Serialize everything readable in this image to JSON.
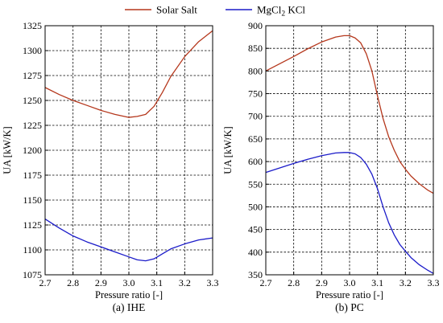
{
  "legend": [
    {
      "name": "Solar Salt",
      "color": "#b5371c"
    },
    {
      "name": "MgCl",
      "sub": "2",
      "name_tail": " KCl",
      "color": "#1b1bc9"
    }
  ],
  "chart_data": [
    {
      "type": "line",
      "caption": "(a) IHE",
      "xlabel": "Pressure ratio [-]",
      "ylabel": "UA  [kW/K]",
      "xlim": [
        2.7,
        3.3
      ],
      "ylim": [
        1075,
        1325
      ],
      "xticks": [
        2.7,
        2.8,
        2.9,
        3.0,
        3.1,
        3.2,
        3.3
      ],
      "xtick_labels": [
        "2.7",
        "2.8",
        "2.9",
        "3.0",
        "3.1",
        "3.2",
        "3.3"
      ],
      "yticks": [
        1075,
        1100,
        1125,
        1150,
        1175,
        1200,
        1225,
        1250,
        1275,
        1300,
        1325
      ],
      "ytick_labels": [
        "1075",
        "1100",
        "1125",
        "1150",
        "1175",
        "1200",
        "1225",
        "1250",
        "1275",
        "1300",
        "1325"
      ],
      "grid": true,
      "series": [
        {
          "name": "Solar Salt",
          "color": "#b5371c",
          "x": [
            2.7,
            2.75,
            2.8,
            2.85,
            2.9,
            2.95,
            3.0,
            3.03,
            3.06,
            3.09,
            3.12,
            3.15,
            3.2,
            3.25,
            3.3
          ],
          "y": [
            1263,
            1256,
            1250,
            1245,
            1240,
            1236,
            1233,
            1234,
            1236,
            1244,
            1258,
            1274,
            1294,
            1309,
            1320
          ]
        },
        {
          "name": "MgCl2 KCl",
          "color": "#1b1bc9",
          "x": [
            2.7,
            2.75,
            2.8,
            2.85,
            2.9,
            2.95,
            3.0,
            3.03,
            3.06,
            3.09,
            3.12,
            3.15,
            3.2,
            3.25,
            3.3
          ],
          "y": [
            1131,
            1122,
            1114,
            1108,
            1103,
            1098,
            1093,
            1090,
            1089,
            1091,
            1096,
            1101,
            1106,
            1110,
            1112
          ]
        }
      ]
    },
    {
      "type": "line",
      "caption": "(b) PC",
      "xlabel": "Pressure ratio [-]",
      "ylabel": "UA  [kW/K]",
      "xlim": [
        2.7,
        3.3
      ],
      "ylim": [
        350,
        900
      ],
      "xticks": [
        2.7,
        2.8,
        2.9,
        3.0,
        3.1,
        3.2,
        3.3
      ],
      "xtick_labels": [
        "2.7",
        "2.8",
        "2.9",
        "3.0",
        "3.1",
        "3.2",
        "3.3"
      ],
      "yticks": [
        350,
        400,
        450,
        500,
        550,
        600,
        650,
        700,
        750,
        800,
        850,
        900
      ],
      "ytick_labels": [
        "350",
        "400",
        "450",
        "500",
        "550",
        "600",
        "650",
        "700",
        "750",
        "800",
        "850",
        "900"
      ],
      "grid": true,
      "series": [
        {
          "name": "Solar Salt",
          "color": "#b5371c",
          "x": [
            2.7,
            2.75,
            2.8,
            2.85,
            2.9,
            2.95,
            2.98,
            3.0,
            3.02,
            3.04,
            3.06,
            3.08,
            3.1,
            3.12,
            3.14,
            3.16,
            3.18,
            3.2,
            3.22,
            3.25,
            3.28,
            3.3
          ],
          "y": [
            800,
            816,
            832,
            849,
            864,
            875,
            878,
            878,
            873,
            862,
            838,
            800,
            745,
            695,
            655,
            625,
            600,
            583,
            568,
            551,
            537,
            530
          ]
        },
        {
          "name": "MgCl2 KCl",
          "color": "#1b1bc9",
          "x": [
            2.7,
            2.75,
            2.8,
            2.85,
            2.9,
            2.95,
            2.98,
            3.0,
            3.02,
            3.04,
            3.06,
            3.08,
            3.1,
            3.12,
            3.14,
            3.16,
            3.18,
            3.2,
            3.22,
            3.25,
            3.28,
            3.3
          ],
          "y": [
            576,
            586,
            596,
            605,
            613,
            619,
            620,
            620,
            617,
            609,
            594,
            572,
            540,
            500,
            465,
            438,
            417,
            402,
            388,
            372,
            360,
            353
          ]
        }
      ]
    }
  ]
}
